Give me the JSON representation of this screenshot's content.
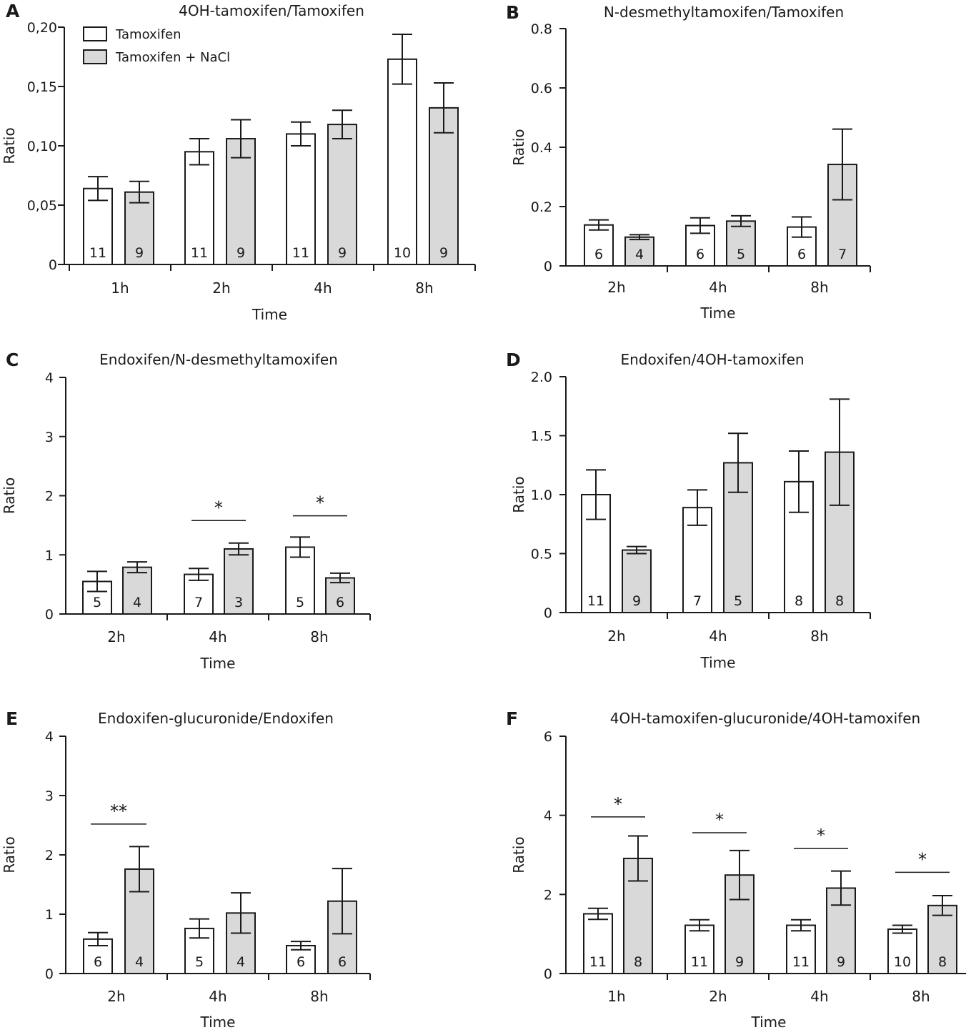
{
  "legend": {
    "series": [
      {
        "name": "Tamoxifen",
        "color": "#ffffff"
      },
      {
        "name": "Tamoxifen + NaCl",
        "color": "#d9d9d9"
      }
    ]
  },
  "chart_data": [
    {
      "panel": "A",
      "type": "bar",
      "title": "4OH-tamoxifen/Tamoxifen",
      "xlabel": "Time",
      "ylabel": "Ratio",
      "ylim": [
        0,
        0.2
      ],
      "yticks": [
        0,
        0.05,
        0.1,
        0.15,
        0.2
      ],
      "ytick_labels": [
        "0",
        "0,05",
        "0,10",
        "0,15",
        "0,20"
      ],
      "categories": [
        "1h",
        "2h",
        "4h",
        "8h"
      ],
      "series": [
        {
          "name": "Tamoxifen",
          "values": [
            0.064,
            0.095,
            0.11,
            0.173
          ],
          "errors": [
            0.01,
            0.011,
            0.01,
            0.021
          ],
          "n": [
            "11",
            "11",
            "11",
            "10"
          ]
        },
        {
          "name": "Tamoxifen + NaCl",
          "values": [
            0.061,
            0.106,
            0.118,
            0.132
          ],
          "errors": [
            0.009,
            0.016,
            0.012,
            0.021
          ],
          "n": [
            "9",
            "9",
            "9",
            "9"
          ]
        }
      ],
      "significance": []
    },
    {
      "panel": "B",
      "type": "bar",
      "title": "N-desmethyltamoxifen/Tamoxifen",
      "xlabel": "Time",
      "ylabel": "Ratio",
      "ylim": [
        0,
        0.8
      ],
      "yticks": [
        0,
        0.2,
        0.4,
        0.6,
        0.8
      ],
      "ytick_labels": [
        "0",
        "0.2",
        "0.4",
        "0.6",
        "0.8"
      ],
      "categories": [
        "2h",
        "4h",
        "8h"
      ],
      "series": [
        {
          "name": "Tamoxifen",
          "values": [
            0.138,
            0.136,
            0.131
          ],
          "errors": [
            0.017,
            0.026,
            0.034
          ],
          "n": [
            "6",
            "6",
            "6"
          ]
        },
        {
          "name": "Tamoxifen + NaCl",
          "values": [
            0.097,
            0.151,
            0.342
          ],
          "errors": [
            0.008,
            0.018,
            0.119
          ],
          "n": [
            "4",
            "5",
            "7"
          ]
        }
      ],
      "significance": []
    },
    {
      "panel": "C",
      "type": "bar",
      "title": "Endoxifen/N-desmethyltamoxifen",
      "xlabel": "Time",
      "ylabel": "Ratio",
      "ylim": [
        0,
        4
      ],
      "yticks": [
        0,
        1,
        2,
        3,
        4
      ],
      "ytick_labels": [
        "0",
        "1",
        "2",
        "3",
        "4"
      ],
      "categories": [
        "2h",
        "4h",
        "8h"
      ],
      "series": [
        {
          "name": "Tamoxifen",
          "values": [
            0.55,
            0.67,
            1.13
          ],
          "errors": [
            0.17,
            0.1,
            0.17
          ],
          "n": [
            "5",
            "7",
            "5"
          ]
        },
        {
          "name": "Tamoxifen + NaCl",
          "values": [
            0.79,
            1.1,
            0.61
          ],
          "errors": [
            0.09,
            0.1,
            0.08
          ],
          "n": [
            "4",
            "3",
            "6"
          ]
        }
      ],
      "significance": [
        {
          "category": "4h",
          "label": "*",
          "level": 1.58
        },
        {
          "category": "8h",
          "label": "*",
          "level": 1.66
        }
      ]
    },
    {
      "panel": "D",
      "type": "bar",
      "title": "Endoxifen/4OH-tamoxifen",
      "xlabel": "Time",
      "ylabel": "Ratio",
      "ylim": [
        0,
        2
      ],
      "yticks": [
        0,
        0.5,
        1,
        1.5,
        2
      ],
      "ytick_labels": [
        "0",
        "0.5",
        "1.0",
        "1.5",
        "2.0"
      ],
      "categories": [
        "2h",
        "4h",
        "8h"
      ],
      "series": [
        {
          "name": "Tamoxifen",
          "values": [
            1.0,
            0.89,
            1.11
          ],
          "errors": [
            0.21,
            0.15,
            0.26
          ],
          "n": [
            "11",
            "7",
            "8"
          ]
        },
        {
          "name": "Tamoxifen + NaCl",
          "values": [
            0.53,
            1.27,
            1.36
          ],
          "errors": [
            0.03,
            0.25,
            0.45
          ],
          "n": [
            "9",
            "5",
            "8"
          ]
        }
      ],
      "significance": []
    },
    {
      "panel": "E",
      "type": "bar",
      "title": "Endoxifen-glucuronide/Endoxifen",
      "xlabel": "Time",
      "ylabel": "Ratio",
      "ylim": [
        0,
        4
      ],
      "yticks": [
        0,
        1,
        2,
        3,
        4
      ],
      "ytick_labels": [
        "0",
        "1",
        "2",
        "3",
        "4"
      ],
      "categories": [
        "2h",
        "4h",
        "8h"
      ],
      "series": [
        {
          "name": "Tamoxifen",
          "values": [
            0.58,
            0.76,
            0.47
          ],
          "errors": [
            0.11,
            0.16,
            0.07
          ],
          "n": [
            "6",
            "5",
            "6"
          ]
        },
        {
          "name": "Tamoxifen + NaCl",
          "values": [
            1.76,
            1.02,
            1.22
          ],
          "errors": [
            0.38,
            0.34,
            0.55
          ],
          "n": [
            "4",
            "4",
            "6"
          ]
        }
      ],
      "significance": [
        {
          "category": "2h",
          "label": "**",
          "level": 2.52
        }
      ]
    },
    {
      "panel": "F",
      "type": "bar",
      "title": "4OH-tamoxifen-glucuronide/4OH-tamoxifen",
      "xlabel": "Time",
      "ylabel": "Ratio",
      "ylim": [
        0,
        6
      ],
      "yticks": [
        0,
        2,
        4,
        6
      ],
      "ytick_labels": [
        "0",
        "2",
        "4",
        "6"
      ],
      "categories": [
        "1h",
        "2h",
        "4h",
        "8h"
      ],
      "series": [
        {
          "name": "Tamoxifen",
          "values": [
            1.51,
            1.22,
            1.22,
            1.12
          ],
          "errors": [
            0.14,
            0.14,
            0.14,
            0.1
          ],
          "n": [
            "11",
            "11",
            "11",
            "10"
          ]
        },
        {
          "name": "Tamoxifen + NaCl",
          "values": [
            2.91,
            2.49,
            2.16,
            1.72
          ],
          "errors": [
            0.57,
            0.62,
            0.43,
            0.25
          ],
          "n": [
            "8",
            "9",
            "9",
            "8"
          ]
        }
      ],
      "significance": [
        {
          "category": "1h",
          "label": "*",
          "level": 3.96
        },
        {
          "category": "2h",
          "label": "*",
          "level": 3.56
        },
        {
          "category": "4h",
          "label": "*",
          "level": 3.16
        },
        {
          "category": "8h",
          "label": "*",
          "level": 2.56
        }
      ]
    }
  ]
}
